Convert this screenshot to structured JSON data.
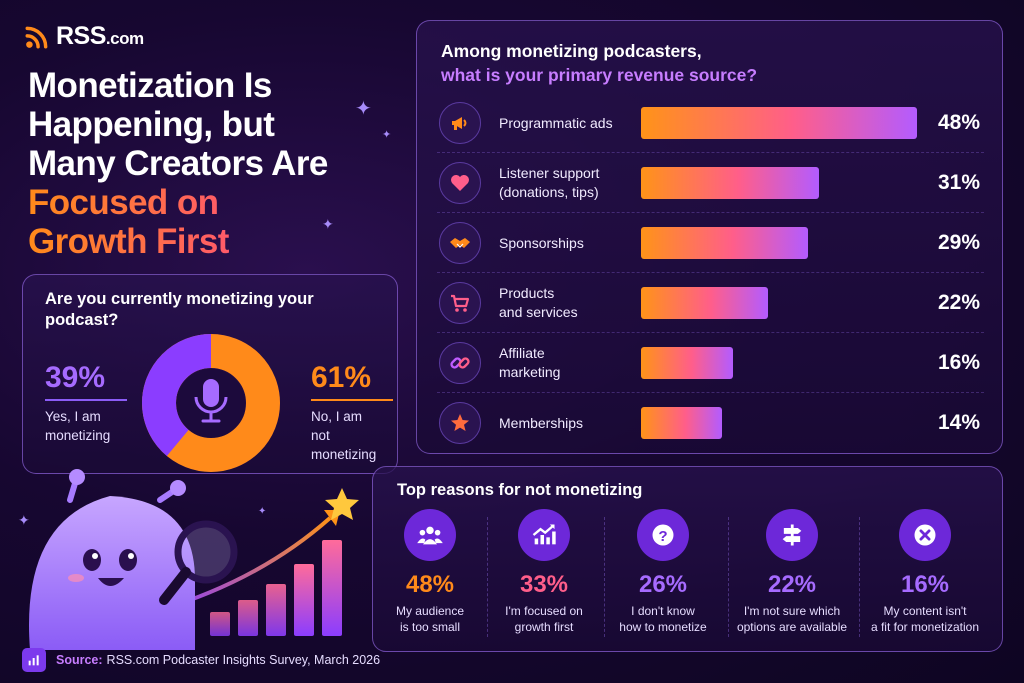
{
  "brand": {
    "name": "RSS",
    "domain": ".com"
  },
  "headline": {
    "lines": [
      "Monetization Is",
      "Happening, but",
      "Many Creators Are"
    ],
    "highlight_lines": [
      "Focused on",
      "Growth First"
    ]
  },
  "colors": {
    "orange": "#ff8a1a",
    "purple": "#a66bff",
    "pink": "#ff5e8a",
    "background": "#170731"
  },
  "monetizing": {
    "question": "Are you currently monetizing your podcast?",
    "yes": {
      "pct": "39%",
      "label": "Yes, I am\nmonetizing"
    },
    "no": {
      "pct": "61%",
      "label": "No, I am\nnot monetizing"
    },
    "icon": "microphone-icon"
  },
  "revenue": {
    "title": "Among monetizing podcasters,",
    "subtitle": "what is your primary revenue source?",
    "rows": [
      {
        "label": "Programmatic ads",
        "pct": "48%",
        "icon": "megaphone-icon"
      },
      {
        "label": "Listener support\n(donations, tips)",
        "pct": "31%",
        "icon": "heart-icon"
      },
      {
        "label": "Sponsorships",
        "pct": "29%",
        "icon": "handshake-icon"
      },
      {
        "label": "Products\nand services",
        "pct": "22%",
        "icon": "cart-icon"
      },
      {
        "label": "Affiliate\nmarketing",
        "pct": "16%",
        "icon": "link-icon"
      },
      {
        "label": "Memberships",
        "pct": "14%",
        "icon": "star-icon"
      }
    ]
  },
  "reasons": {
    "title": "Top reasons for not monetizing",
    "items": [
      {
        "pct": "48%",
        "label": "My audience\nis too small",
        "color": "#ff8a1a",
        "icon": "people-icon"
      },
      {
        "pct": "33%",
        "label": "I'm focused on\ngrowth first",
        "color": "#ff5e8a",
        "icon": "growth-chart-icon"
      },
      {
        "pct": "26%",
        "label": "I don't know\nhow to monetize",
        "color": "#a66bff",
        "icon": "question-icon"
      },
      {
        "pct": "22%",
        "label": "I'm not sure which\noptions are available",
        "color": "#a66bff",
        "icon": "signpost-icon"
      },
      {
        "pct": "16%",
        "label": "My content isn't\na fit for monetization",
        "color": "#a66bff",
        "icon": "x-circle-icon"
      }
    ]
  },
  "source": {
    "key": "Source:",
    "text": "RSS.com Podcaster Insights Survey, March 2026"
  },
  "chart_data": [
    {
      "type": "pie",
      "title": "Are you currently monetizing your podcast?",
      "categories": [
        "Yes, I am monetizing",
        "No, I am not monetizing"
      ],
      "values": [
        39,
        61
      ]
    },
    {
      "type": "bar",
      "title": "Among monetizing podcasters, what is your primary revenue source?",
      "categories": [
        "Programmatic ads",
        "Listener support (donations, tips)",
        "Sponsorships",
        "Products and services",
        "Affiliate marketing",
        "Memberships"
      ],
      "values": [
        48,
        31,
        29,
        22,
        16,
        14
      ]
    },
    {
      "type": "table",
      "title": "Top reasons for not monetizing",
      "categories": [
        "My audience is too small",
        "I'm focused on growth first",
        "I don't know how to monetize",
        "I'm not sure which options are available",
        "My content isn't a fit for monetization"
      ],
      "values": [
        48,
        33,
        26,
        22,
        16
      ]
    }
  ]
}
